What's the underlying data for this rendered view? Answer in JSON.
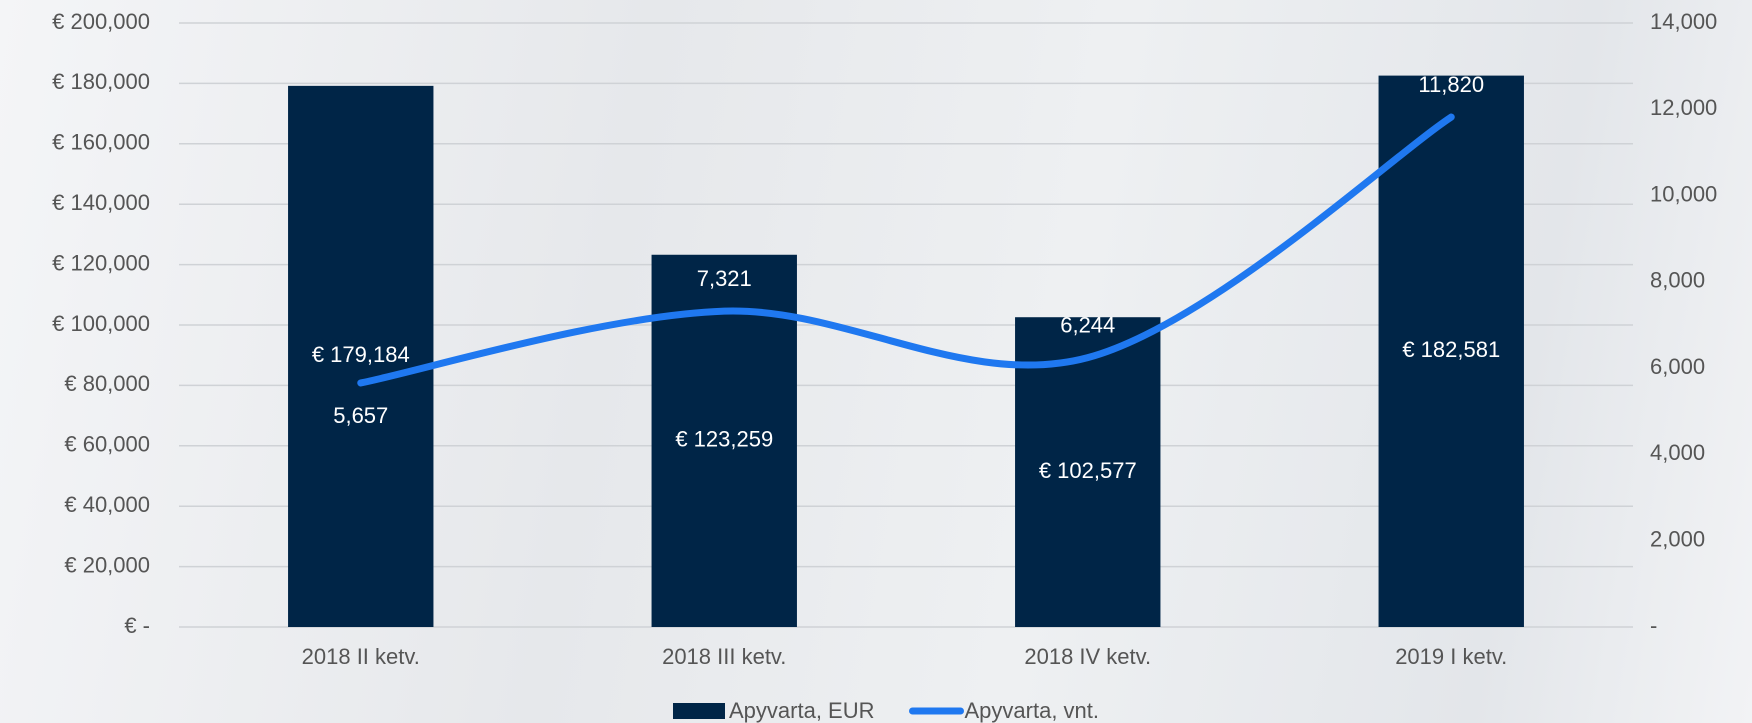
{
  "chart_data": {
    "type": "combo",
    "categories": [
      "2018 II ketv.",
      "2018 III ketv.",
      "2018 IV ketv.",
      "2019 I ketv."
    ],
    "series": [
      {
        "name": "Apyvarta, EUR",
        "type": "bar",
        "color": "#002547",
        "values": [
          179184,
          123259,
          102577,
          182581
        ],
        "value_labels": [
          "€ 179,184",
          "€ 123,259",
          "€ 102,577",
          "€ 182,581"
        ]
      },
      {
        "name": "Apyvarta, vnt.",
        "type": "line",
        "axis": "y2",
        "color": "#1f78f0",
        "values": [
          5657,
          7321,
          6244,
          11820
        ],
        "value_labels": [
          "5,657",
          "7,321",
          "6,244",
          "11,820"
        ]
      }
    ],
    "ylim": [
      0,
      200000
    ],
    "yticks": [
      {
        "value": 0,
        "label": "€ -"
      },
      {
        "value": 20000,
        "label": "€ 20,000"
      },
      {
        "value": 40000,
        "label": "€ 40,000"
      },
      {
        "value": 60000,
        "label": "€ 60,000"
      },
      {
        "value": 80000,
        "label": "€ 80,000"
      },
      {
        "value": 100000,
        "label": "€ 100,000"
      },
      {
        "value": 120000,
        "label": "€ 120,000"
      },
      {
        "value": 140000,
        "label": "€ 140,000"
      },
      {
        "value": 160000,
        "label": "€ 160,000"
      },
      {
        "value": 180000,
        "label": "€ 180,000"
      },
      {
        "value": 200000,
        "label": "€ 200,000"
      }
    ],
    "y2lim": [
      0,
      14000
    ],
    "y2ticks": [
      {
        "value": 0,
        "label": "-"
      },
      {
        "value": 2000,
        "label": "2,000"
      },
      {
        "value": 4000,
        "label": "4,000"
      },
      {
        "value": 6000,
        "label": "6,000"
      },
      {
        "value": 8000,
        "label": "8,000"
      },
      {
        "value": 10000,
        "label": "10,000"
      },
      {
        "value": 12000,
        "label": "12,000"
      },
      {
        "value": 14000,
        "label": "14,000"
      }
    ],
    "grid": true,
    "legend": "bottom"
  }
}
